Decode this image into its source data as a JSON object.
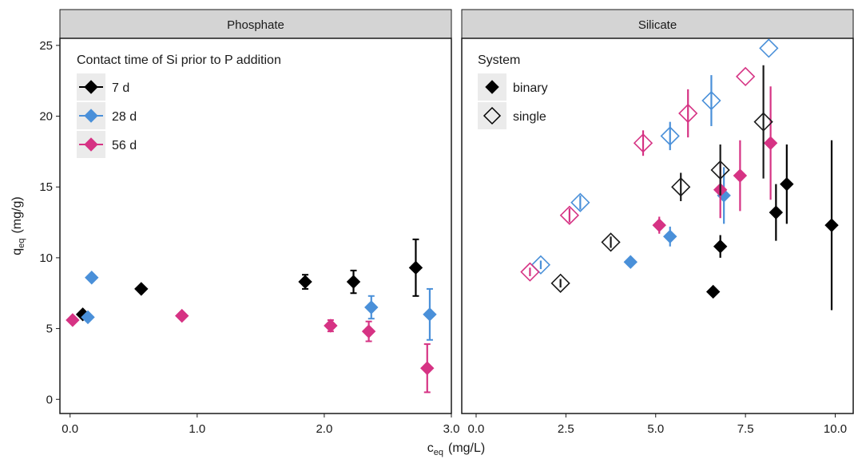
{
  "figure": {
    "xlabel_main": "c",
    "xlabel_sub": "eq",
    "xlabel_unit": "(mg/L)",
    "ylabel_main": "q",
    "ylabel_sub": "eq",
    "ylabel_unit": "(mg/g)"
  },
  "chart_data": [
    {
      "type": "scatter",
      "title": "Phosphate",
      "xlim": [
        -0.08,
        3.0
      ],
      "ylim": [
        -1.0,
        25.5
      ],
      "x_ticks": [
        0.0,
        1.0,
        2.0,
        3.0
      ],
      "x_tick_labels": [
        "0.0",
        "1.0",
        "2.0",
        "3.0"
      ],
      "y_ticks": [
        0,
        5,
        10,
        15,
        20,
        25
      ],
      "y_tick_labels": [
        "0",
        "5",
        "10",
        "15",
        "20",
        "25"
      ],
      "grid": false,
      "legend": {
        "position": "top-left",
        "title": "Contact time of Si prior to P addition",
        "entries": [
          {
            "label": "7 d",
            "color": "#000000"
          },
          {
            "label": "28 d",
            "color": "#4a90d9"
          },
          {
            "label": "56 d",
            "color": "#d63384"
          }
        ]
      },
      "series": [
        {
          "name": "7 d",
          "color": "#000000",
          "marker": "filled-diamond",
          "points": [
            {
              "x": 0.1,
              "y": 6.0,
              "err": 0
            },
            {
              "x": 0.56,
              "y": 7.8,
              "err": 0
            },
            {
              "x": 1.85,
              "y": 8.3,
              "err": 0.5
            },
            {
              "x": 2.23,
              "y": 8.3,
              "err": 0.8
            },
            {
              "x": 2.72,
              "y": 9.3,
              "err": 2.0
            }
          ]
        },
        {
          "name": "28 d",
          "color": "#4a90d9",
          "marker": "filled-diamond",
          "points": [
            {
              "x": 0.14,
              "y": 5.8,
              "err": 0
            },
            {
              "x": 0.17,
              "y": 8.6,
              "err": 0
            },
            {
              "x": 2.37,
              "y": 6.5,
              "err": 0.8
            },
            {
              "x": 2.83,
              "y": 6.0,
              "err": 1.8
            }
          ]
        },
        {
          "name": "56 d",
          "color": "#d63384",
          "marker": "filled-diamond",
          "points": [
            {
              "x": 0.02,
              "y": 5.6,
              "err": 0
            },
            {
              "x": 0.88,
              "y": 5.9,
              "err": 0
            },
            {
              "x": 2.05,
              "y": 5.2,
              "err": 0.4
            },
            {
              "x": 2.35,
              "y": 4.8,
              "err": 0.7
            },
            {
              "x": 2.81,
              "y": 2.2,
              "err": 1.7
            }
          ]
        }
      ]
    },
    {
      "type": "scatter",
      "title": "Silicate",
      "xlim": [
        -0.4,
        10.5
      ],
      "ylim": [
        -1.0,
        25.5
      ],
      "x_ticks": [
        0.0,
        2.5,
        5.0,
        7.5,
        10.0
      ],
      "x_tick_labels": [
        "0.0",
        "2.5",
        "5.0",
        "7.5",
        "10.0"
      ],
      "grid": false,
      "legend": {
        "position": "top-left",
        "title": "System",
        "entries": [
          {
            "label": "binary",
            "marker": "filled-diamond"
          },
          {
            "label": "single",
            "marker": "open-diamond"
          }
        ]
      },
      "series": [
        {
          "name": "7 d",
          "system": "binary",
          "color": "#000000",
          "marker": "filled-diamond",
          "points": [
            {
              "x": 6.6,
              "y": 7.6,
              "err": 0
            },
            {
              "x": 6.8,
              "y": 10.8,
              "err": 0.8
            },
            {
              "x": 8.35,
              "y": 13.2,
              "err": 2.0
            },
            {
              "x": 8.65,
              "y": 15.2,
              "err": 2.8
            },
            {
              "x": 9.9,
              "y": 12.3,
              "err": 6.0
            }
          ]
        },
        {
          "name": "28 d",
          "system": "binary",
          "color": "#4a90d9",
          "marker": "filled-diamond",
          "points": [
            {
              "x": 4.3,
              "y": 9.7,
              "err": 0
            },
            {
              "x": 5.4,
              "y": 11.5,
              "err": 0.7
            },
            {
              "x": 6.9,
              "y": 14.4,
              "err": 2.0
            }
          ]
        },
        {
          "name": "56 d",
          "system": "binary",
          "color": "#d63384",
          "marker": "filled-diamond",
          "points": [
            {
              "x": 5.1,
              "y": 12.3,
              "err": 0.6
            },
            {
              "x": 6.8,
              "y": 14.8,
              "err": 2.0
            },
            {
              "x": 7.35,
              "y": 15.8,
              "err": 2.5
            },
            {
              "x": 8.2,
              "y": 18.1,
              "err": 4.0
            }
          ]
        },
        {
          "name": "7 d",
          "system": "single",
          "color": "#1a1a1a",
          "marker": "open-diamond",
          "points": [
            {
              "x": 2.35,
              "y": 8.2,
              "err": 0.3
            },
            {
              "x": 3.75,
              "y": 11.1,
              "err": 0.4
            },
            {
              "x": 5.7,
              "y": 15.0,
              "err": 1.0
            },
            {
              "x": 6.8,
              "y": 16.2,
              "err": 1.8
            },
            {
              "x": 8.0,
              "y": 19.6,
              "err": 4.0
            }
          ]
        },
        {
          "name": "28 d",
          "system": "single",
          "color": "#4a90d9",
          "marker": "open-diamond",
          "points": [
            {
              "x": 1.8,
              "y": 9.5,
              "err": 0.3
            },
            {
              "x": 2.9,
              "y": 13.9,
              "err": 0.5
            },
            {
              "x": 5.4,
              "y": 18.6,
              "err": 1.0
            },
            {
              "x": 6.55,
              "y": 21.1,
              "err": 1.8
            },
            {
              "x": 8.15,
              "y": 24.8,
              "err": 0
            }
          ]
        },
        {
          "name": "56 d",
          "system": "single",
          "color": "#d63384",
          "marker": "open-diamond",
          "points": [
            {
              "x": 1.5,
              "y": 9.0,
              "err": 0.3
            },
            {
              "x": 2.6,
              "y": 13.0,
              "err": 0.5
            },
            {
              "x": 4.65,
              "y": 18.1,
              "err": 0.9
            },
            {
              "x": 5.9,
              "y": 20.2,
              "err": 1.7
            },
            {
              "x": 7.5,
              "y": 22.8,
              "err": 0
            }
          ]
        }
      ]
    }
  ]
}
